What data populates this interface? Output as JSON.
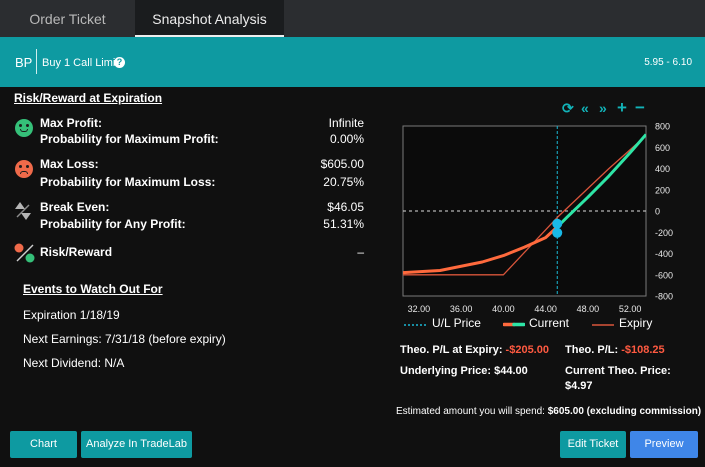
{
  "tabs": {
    "order_ticket": "Order Ticket",
    "snapshot": "Snapshot Analysis"
  },
  "header": {
    "symbol": "BP",
    "order": "Buy 1 Call Limit",
    "range": "5.95 - 6.10"
  },
  "risk": {
    "title": "Risk/Reward at Expiration",
    "max_profit_label": "Max Profit:",
    "max_profit": "Infinite",
    "prob_max_profit_label": "Probability for Maximum Profit:",
    "prob_max_profit": "0.00%",
    "max_loss_label": "Max Loss:",
    "max_loss": "$605.00",
    "prob_max_loss_label": "Probability for Maximum Loss:",
    "prob_max_loss": "20.75%",
    "break_even_label": "Break Even:",
    "break_even": "$46.05",
    "prob_any_profit_label": "Probability for Any Profit:",
    "prob_any_profit": "51.31%",
    "rr_label": "Risk/Reward",
    "rr_value": "–"
  },
  "events": {
    "title": "Events to Watch Out For",
    "expiration": "Expiration 1/18/19",
    "earnings": "Next Earnings: 7/31/18 (before expiry)",
    "dividend": "Next Dividend: N/A"
  },
  "controls": {
    "refresh": "⟳",
    "left": "«",
    "right": "»",
    "plus": "+",
    "minus": "−"
  },
  "chart_data": {
    "type": "line",
    "x_ticks": [
      "32.00",
      "36.00",
      "40.00",
      "44.00",
      "48.00",
      "52.00"
    ],
    "y_ticks": [
      "800",
      "600",
      "400",
      "200",
      "0",
      "-200",
      "-400",
      "-600",
      "-800"
    ],
    "xlim": [
      30.5,
      53.5
    ],
    "ylim": [
      -800,
      800
    ],
    "underlying_price": 45.1,
    "series": [
      {
        "name": "Current",
        "color": "#ff6a3d",
        "x": [
          30.5,
          34,
          38,
          40,
          42,
          44,
          45.1
        ],
        "y": [
          -580,
          -560,
          -480,
          -420,
          -340,
          -250,
          -150
        ]
      },
      {
        "name": "Current",
        "color": "#2ee5a6",
        "x": [
          45.1,
          46,
          48,
          50,
          52,
          53.5
        ],
        "y": [
          -150,
          -60,
          130,
          330,
          550,
          720
        ]
      },
      {
        "name": "Expiry",
        "color": "#d9553b",
        "x": [
          30.5,
          40,
          45.1,
          50,
          53.5
        ],
        "y": [
          -600,
          -600,
          -60,
          400,
          710
        ]
      }
    ],
    "markers": [
      {
        "x": 45.1,
        "y": -120,
        "color": "#19b9e6"
      },
      {
        "x": 45.1,
        "y": -205,
        "color": "#19b9e6"
      }
    ]
  },
  "legend": {
    "ul": "U/L Price",
    "current": "Current",
    "expiry": "Expiry"
  },
  "theo": {
    "pl_expiry_label": "Theo. P/L at Expiry: ",
    "pl_expiry": "-$205.00",
    "pl_label": "Theo. P/L: ",
    "pl": "-$108.25",
    "underlying": "Underlying Price: $44.00",
    "current_price_label": "Current Theo. Price:",
    "current_price": "$4.97"
  },
  "spend": {
    "text": "Estimated amount you will spend: ",
    "amount": "$605.00 (excluding commission)"
  },
  "buttons": {
    "chart": "Chart",
    "tradelab": "Analyze In TradeLab",
    "edit": "Edit Ticket",
    "preview": "Preview"
  }
}
